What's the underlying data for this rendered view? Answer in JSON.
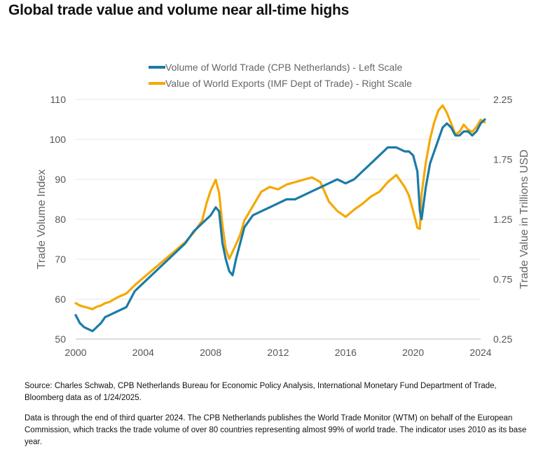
{
  "header": {
    "title": "Global trade value and volume near all-time highs"
  },
  "chart_data": {
    "type": "line",
    "legend_position": "top-center",
    "grid": "horizontal",
    "colors": {
      "volume": "#1a7ba8",
      "value": "#f5a800"
    },
    "x_axis": {
      "range": [
        2000,
        2024
      ],
      "ticks": [
        "2000",
        "2004",
        "2008",
        "2012",
        "2016",
        "2020",
        "2024"
      ]
    },
    "y_left": {
      "label": "Trade Volume Index",
      "range": [
        50,
        110
      ],
      "ticks": [
        "50",
        "60",
        "70",
        "80",
        "90",
        "100",
        "110"
      ]
    },
    "y_right": {
      "label": "Trade Value in Trillions USD",
      "range": [
        0.25,
        2.25
      ],
      "ticks": [
        "0.25",
        "0.75",
        "1.25",
        "1.75",
        "2.25"
      ]
    },
    "series": [
      {
        "name": "Volume of World Trade (CPB Netherlands) - Left Scale",
        "axis": "left",
        "x": [
          2000.0,
          2000.25,
          2000.5,
          2000.75,
          2001.0,
          2001.25,
          2001.5,
          2001.75,
          2002.0,
          2002.5,
          2003.0,
          2003.5,
          2004.0,
          2004.5,
          2005.0,
          2005.5,
          2006.0,
          2006.5,
          2007.0,
          2007.5,
          2008.0,
          2008.3,
          2008.5,
          2008.7,
          2008.9,
          2009.1,
          2009.3,
          2009.5,
          2009.75,
          2010.0,
          2010.5,
          2011.0,
          2011.5,
          2012.0,
          2012.5,
          2013.0,
          2013.5,
          2014.0,
          2014.5,
          2015.0,
          2015.5,
          2016.0,
          2016.5,
          2017.0,
          2017.5,
          2018.0,
          2018.5,
          2019.0,
          2019.5,
          2019.75,
          2020.0,
          2020.25,
          2020.4,
          2020.5,
          2020.75,
          2021.0,
          2021.25,
          2021.5,
          2021.75,
          2022.0,
          2022.25,
          2022.5,
          2022.75,
          2023.0,
          2023.25,
          2023.5,
          2023.75,
          2024.0,
          2024.25
        ],
        "values": [
          56,
          54,
          53,
          52.5,
          52,
          53,
          54,
          55.5,
          56,
          57,
          58,
          62,
          64,
          66,
          68,
          70,
          72,
          74,
          77,
          79,
          81,
          83,
          82,
          74,
          70,
          67,
          66,
          70,
          74,
          78,
          81,
          82,
          83,
          84,
          85,
          85,
          86,
          87,
          88,
          89,
          90,
          89,
          90,
          92,
          94,
          96,
          98,
          98,
          97,
          97,
          96,
          92,
          82,
          80,
          88,
          94,
          97,
          100,
          103,
          104,
          103,
          101,
          101,
          102,
          102,
          101,
          102,
          104,
          105
        ]
      },
      {
        "name": "Value of World Exports (IMF Dept of Trade) - Right Scale",
        "axis": "right",
        "x": [
          2000.0,
          2000.25,
          2000.5,
          2000.75,
          2001.0,
          2001.25,
          2001.5,
          2001.75,
          2002.0,
          2002.5,
          2003.0,
          2003.5,
          2004.0,
          2004.5,
          2005.0,
          2005.5,
          2006.0,
          2006.5,
          2007.0,
          2007.5,
          2007.75,
          2008.0,
          2008.3,
          2008.5,
          2008.7,
          2008.9,
          2009.1,
          2009.3,
          2009.5,
          2009.75,
          2010.0,
          2010.5,
          2011.0,
          2011.5,
          2012.0,
          2012.5,
          2013.0,
          2013.5,
          2014.0,
          2014.5,
          2015.0,
          2015.5,
          2016.0,
          2016.5,
          2017.0,
          2017.5,
          2018.0,
          2018.5,
          2019.0,
          2019.5,
          2019.75,
          2020.0,
          2020.25,
          2020.4,
          2020.5,
          2020.75,
          2021.0,
          2021.25,
          2021.5,
          2021.75,
          2022.0,
          2022.25,
          2022.5,
          2022.75,
          2023.0,
          2023.25,
          2023.5,
          2023.75,
          2024.0,
          2024.25
        ],
        "values": [
          0.55,
          0.53,
          0.52,
          0.51,
          0.5,
          0.52,
          0.53,
          0.55,
          0.56,
          0.6,
          0.63,
          0.7,
          0.76,
          0.82,
          0.88,
          0.94,
          1.0,
          1.06,
          1.14,
          1.24,
          1.38,
          1.49,
          1.58,
          1.47,
          1.2,
          1.0,
          0.92,
          0.98,
          1.04,
          1.12,
          1.24,
          1.36,
          1.48,
          1.52,
          1.5,
          1.54,
          1.56,
          1.58,
          1.6,
          1.56,
          1.4,
          1.32,
          1.27,
          1.33,
          1.38,
          1.44,
          1.48,
          1.56,
          1.62,
          1.52,
          1.45,
          1.32,
          1.18,
          1.17,
          1.46,
          1.72,
          1.92,
          2.06,
          2.16,
          2.2,
          2.14,
          2.05,
          1.96,
          1.98,
          2.04,
          2.0,
          1.98,
          2.02,
          2.08,
          2.06
        ]
      }
    ]
  },
  "notes": {
    "source": "Source: Charles Schwab, CPB Netherlands Bureau for Economic Policy Analysis, International Monetary Fund Department of Trade, Bloomberg data as of 1/24/2025.",
    "data": "Data is through the end of third quarter 2024. The CPB Netherlands publishes the World Trade Monitor (WTM) on behalf of the European Commission, which tracks the trade volume of over 80 countries representing almost 99% of world trade. The indicator uses 2010 as its base year."
  }
}
